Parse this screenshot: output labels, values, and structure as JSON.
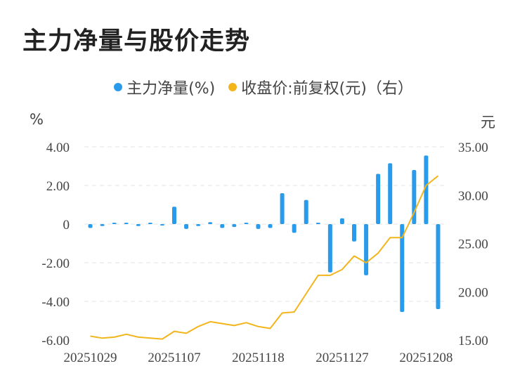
{
  "title": "主力净量与股价走势",
  "legend": [
    {
      "label": "主力净量(%)",
      "color": "#2a9bea"
    },
    {
      "label": "收盘价:前复权(元)（右）",
      "color": "#f2b51c"
    }
  ],
  "left_unit": "%",
  "right_unit": "元",
  "chart_data": {
    "type": "bar+line",
    "x": [
      "20251029",
      "20251030",
      "20251031",
      "20251103",
      "20251104",
      "20251105",
      "20251106",
      "20251107",
      "20251110",
      "20251111",
      "20251112",
      "20251113",
      "20251114",
      "20251117",
      "20251118",
      "20251119",
      "20251120",
      "20251121",
      "20251124",
      "20251125",
      "20251126",
      "20251127",
      "20251128",
      "20251201",
      "20251202",
      "20251203",
      "20251204",
      "20251205",
      "20251208",
      "20251209"
    ],
    "x_tick_labels": [
      "20251029",
      "20251107",
      "20251118",
      "20251127",
      "20251208"
    ],
    "x_tick_index": [
      0,
      7,
      14,
      21,
      28
    ],
    "series": [
      {
        "name": "主力净量(%)",
        "type": "bar",
        "axis": "left",
        "values": [
          -0.2,
          -0.1,
          0.05,
          0.05,
          -0.1,
          0,
          -0.05,
          0.9,
          -0.25,
          -0.1,
          0.1,
          -0.2,
          -0.15,
          0.05,
          -0.25,
          -0.2,
          1.6,
          -0.45,
          1.25,
          0.05,
          -2.5,
          0.3,
          -0.9,
          -2.65,
          2.6,
          3.15,
          -4.55,
          2.8,
          3.55,
          -4.4
        ]
      },
      {
        "name": "收盘价:前复权(元)（右）",
        "type": "line",
        "axis": "right",
        "values": [
          15.4,
          15.2,
          15.3,
          15.6,
          15.3,
          15.2,
          15.1,
          15.9,
          15.7,
          16.4,
          16.9,
          16.7,
          16.5,
          16.8,
          16.4,
          16.2,
          17.8,
          17.9,
          19.8,
          21.7,
          21.7,
          22.3,
          23.7,
          23.0,
          24.0,
          25.6,
          25.6,
          28.2,
          31.0,
          32.0
        ]
      }
    ],
    "y_left": {
      "min": -6,
      "max": 4,
      "ticks": [
        "4.00",
        "2.00",
        "0",
        "-2.00",
        "-4.00",
        "-6.00"
      ]
    },
    "y_right": {
      "min": 15,
      "max": 35,
      "ticks": [
        "35.00",
        "30.00",
        "25.00",
        "20.00",
        "15.00"
      ]
    },
    "grid": true,
    "legend_position": "top-center"
  }
}
